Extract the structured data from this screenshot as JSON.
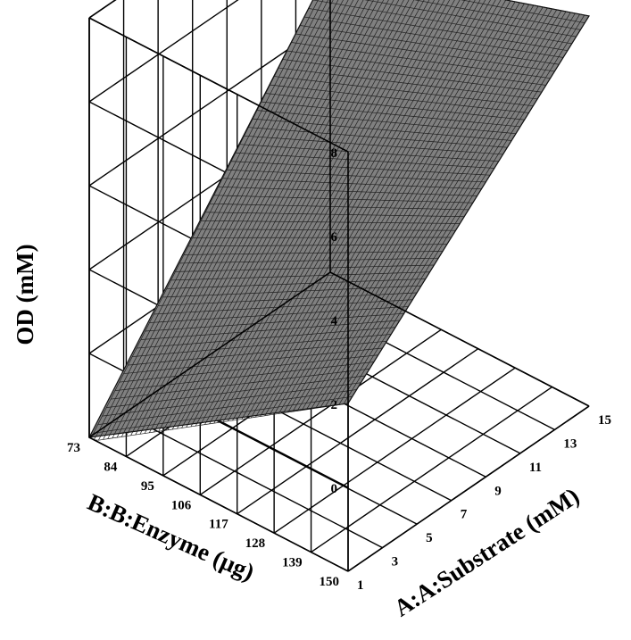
{
  "chart_data": {
    "type": "surface",
    "zlabel": "OD (mM)",
    "xlabel": "A:A:Substrate (mM)",
    "ylabel": "B:B:Enzyme (µg)",
    "z_ticks": [
      "0",
      "2",
      "4",
      "6",
      "8"
    ],
    "x_ticks": [
      "1",
      "3",
      "5",
      "7",
      "9",
      "11",
      "13",
      "15"
    ],
    "y_ticks": [
      "150",
      "139",
      "128",
      "117",
      "106",
      "95",
      "84",
      "73"
    ],
    "zlim": [
      -2,
      8
    ],
    "xlim": [
      1,
      15
    ],
    "ylim": [
      73,
      150
    ],
    "grid": true,
    "surface": {
      "x": [
        1,
        15
      ],
      "y": [
        73,
        150
      ],
      "z": [
        [
          -2.1,
          2.0
        ],
        [
          5.3,
          7.3
        ]
      ],
      "note_rows": "z[i][j] at x[i] (substrate) and y[j] (enzyme)"
    },
    "colors": {
      "surface": "#808080",
      "mesh": "#202020",
      "grid": "#000000"
    }
  }
}
